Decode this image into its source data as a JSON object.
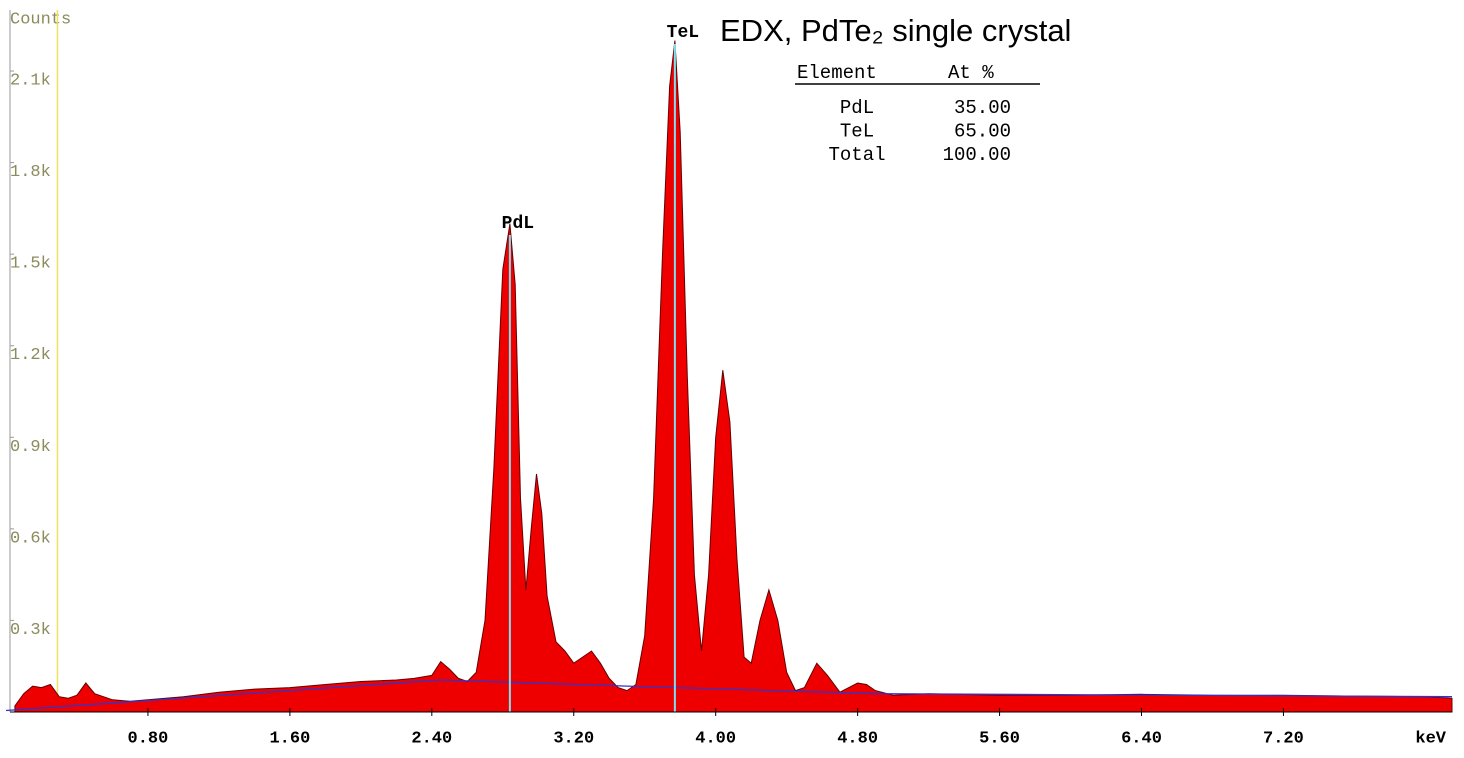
{
  "chart_data": {
    "type": "area",
    "title": "EDX, PdTe₂ single crystal",
    "ylabel": "Counts",
    "xlabel": "keV",
    "xlim": [
      0,
      8.15
    ],
    "ylim": [
      0,
      2300
    ],
    "xticks": [
      {
        "value": 0.8,
        "label": "0.80"
      },
      {
        "value": 1.6,
        "label": "1.60"
      },
      {
        "value": 2.4,
        "label": "2.40"
      },
      {
        "value": 3.2,
        "label": "3.20"
      },
      {
        "value": 4.0,
        "label": "4.00"
      },
      {
        "value": 4.8,
        "label": "4.80"
      },
      {
        "value": 5.6,
        "label": "5.60"
      },
      {
        "value": 6.4,
        "label": "6.40"
      },
      {
        "value": 7.2,
        "label": "7.20"
      }
    ],
    "yticks": [
      {
        "value": 300,
        "label": "0.3k"
      },
      {
        "value": 600,
        "label": "0.6k"
      },
      {
        "value": 900,
        "label": "0.9k"
      },
      {
        "value": 1200,
        "label": "1.2k"
      },
      {
        "value": 1500,
        "label": "1.5k"
      },
      {
        "value": 1800,
        "label": "1.8k"
      },
      {
        "value": 2100,
        "label": "2.1k"
      }
    ],
    "cursor_x": 0.29,
    "series": [
      {
        "color": "#ee0000",
        "x": [
          0.05,
          0.1,
          0.15,
          0.2,
          0.25,
          0.3,
          0.35,
          0.4,
          0.45,
          0.5,
          0.6,
          0.7,
          0.8,
          0.9,
          1.0,
          1.2,
          1.4,
          1.6,
          1.8,
          2.0,
          2.2,
          2.3,
          2.4,
          2.45,
          2.5,
          2.55,
          2.6,
          2.65,
          2.7,
          2.75,
          2.8,
          2.84,
          2.87,
          2.9,
          2.93,
          2.96,
          2.99,
          3.02,
          3.05,
          3.1,
          3.15,
          3.2,
          3.25,
          3.3,
          3.35,
          3.4,
          3.45,
          3.5,
          3.55,
          3.6,
          3.65,
          3.7,
          3.74,
          3.77,
          3.8,
          3.84,
          3.88,
          3.92,
          3.96,
          4.0,
          4.04,
          4.08,
          4.12,
          4.16,
          4.2,
          4.25,
          4.3,
          4.35,
          4.4,
          4.45,
          4.5,
          4.57,
          4.63,
          4.7,
          4.8,
          4.85,
          4.9,
          5.0,
          5.2,
          5.6,
          6.0,
          6.4,
          6.8,
          7.2,
          7.6,
          8.0,
          8.15
        ],
        "values": [
          20,
          60,
          85,
          80,
          90,
          50,
          45,
          55,
          95,
          60,
          40,
          35,
          40,
          45,
          50,
          65,
          75,
          80,
          90,
          100,
          105,
          110,
          120,
          165,
          140,
          110,
          100,
          130,
          300,
          800,
          1450,
          1600,
          1400,
          700,
          400,
          600,
          780,
          650,
          380,
          230,
          200,
          160,
          180,
          200,
          160,
          110,
          80,
          70,
          90,
          250,
          700,
          1500,
          2050,
          2200,
          1900,
          1100,
          450,
          200,
          450,
          900,
          1120,
          950,
          500,
          180,
          160,
          300,
          400,
          300,
          130,
          70,
          80,
          160,
          120,
          65,
          95,
          90,
          70,
          55,
          60,
          55,
          55,
          58,
          55,
          55,
          52,
          50,
          45
        ]
      },
      {
        "color": "#3333cc",
        "line": true,
        "x": [
          0,
          2.45,
          3.5,
          4.9,
          8.15
        ],
        "values": [
          5,
          105,
          85,
          60,
          50
        ]
      }
    ],
    "peak_labels": [
      {
        "label": "PdL",
        "x": 2.84
      },
      {
        "label": "TeL",
        "x": 3.77
      }
    ]
  },
  "results": {
    "headers": [
      "Element",
      "At %"
    ],
    "rows": [
      [
        "PdL",
        "35.00"
      ],
      [
        "TeL",
        "65.00"
      ],
      [
        "Total",
        "100.00"
      ]
    ]
  }
}
